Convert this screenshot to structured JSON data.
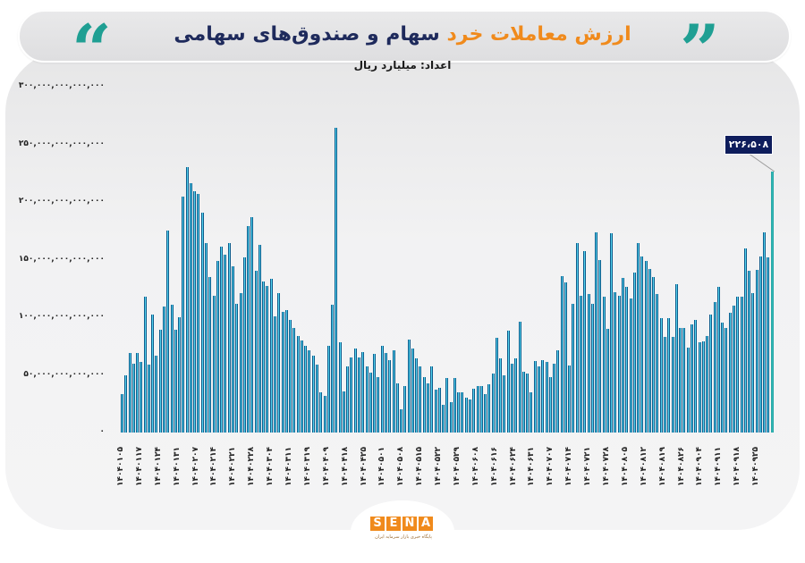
{
  "header": {
    "title_accent": "ارزش معاملات خرد",
    "title_main": "سهام و صندوق‌های سهامی",
    "subtitle": "اعداد: میلیارد ریال",
    "quote_left": "“",
    "quote_right": "”",
    "colors": {
      "accent": "#f08a1c",
      "title": "#1e2a5c",
      "quote": "#1f9f93"
    }
  },
  "callout": {
    "label": "۲۲۶،۵۰۸"
  },
  "footer": {
    "logo_letters": [
      "S",
      "E",
      "N",
      "A"
    ],
    "logo_tagline": "پایگاه خبری بازار سرمایه ایران",
    "logo_color": "#f08a1c"
  },
  "chart_data": {
    "type": "bar",
    "title": "ارزش معاملات خرد سهام و صندوق‌های سهامی",
    "subtitle": "اعداد: میلیارد ریال",
    "xlabel": "",
    "ylabel": "",
    "ylim": [
      0,
      300000000000000
    ],
    "y_unit_scale": "values in trillions of axis units (×1,000,000,000,000)",
    "y_ticks": [
      "۳۰۰,۰۰۰,۰۰۰,۰۰۰,۰۰۰",
      "۲۵۰,۰۰۰,۰۰۰,۰۰۰,۰۰۰",
      "۲۰۰,۰۰۰,۰۰۰,۰۰۰,۰۰۰",
      "۱۵۰,۰۰۰,۰۰۰,۰۰۰,۰۰۰",
      "۱۰۰,۰۰۰,۰۰۰,۰۰۰,۰۰۰",
      "۵۰,۰۰۰,۰۰۰,۰۰۰,۰۰۰",
      "۰"
    ],
    "y_tick_values": [
      300,
      250,
      200,
      150,
      100,
      50,
      0
    ],
    "x_tick_labels": [
      "۱۴۰۴۰۱۰۵",
      "۱۴۰۴۰۱۱۷",
      "۱۴۰۴۰۱۲۴",
      "۱۴۰۴۰۱۳۱",
      "۱۴۰۴۰۲۰۷",
      "۱۴۰۴۰۲۱۴",
      "۱۴۰۴۰۲۲۱",
      "۱۴۰۴۰۲۲۸",
      "۱۴۰۴۰۳۰۴",
      "۱۴۰۴۰۳۱۱",
      "۱۴۰۴۰۳۱۹",
      "۱۴۰۴۰۴۰۹",
      "۱۴۰۴۰۴۱۸",
      "۱۴۰۴۰۴۲۵",
      "۱۴۰۴۰۵۰۱",
      "۱۴۰۴۰۵۰۸",
      "۱۴۰۴۰۵۱۵",
      "۱۴۰۴۰۵۲۲",
      "۱۴۰۴۰۵۲۹",
      "۱۴۰۴۰۶۰۸",
      "۱۴۰۴۰۶۱۶",
      "۱۴۰۴۰۶۲۴",
      "۱۴۰۴۰۶۳۱",
      "۱۴۰۴۰۷۰۷",
      "۱۴۰۴۰۷۱۴",
      "۱۴۰۴۰۷۲۱",
      "۱۴۰۴۰۷۲۸",
      "۱۴۰۴۰۸۰۵",
      "۱۴۰۴۰۸۱۲",
      "۱۴۰۴۰۸۱۹",
      "۱۴۰۴۰۸۲۶",
      "۱۴۰۴۰۹۰۴",
      "۱۴۰۴۰۹۱۱",
      "۱۴۰۴۰۹۱۸",
      "۱۴۰۴۰۹۲۵"
    ],
    "values": [
      33,
      50,
      69,
      60,
      69,
      61,
      118,
      59,
      102,
      67,
      89,
      109,
      175,
      111,
      89,
      100,
      205,
      230,
      216,
      209,
      207,
      191,
      164,
      135,
      119,
      149,
      161,
      154,
      164,
      144,
      112,
      121,
      152,
      179,
      187,
      140,
      163,
      131,
      127,
      133,
      101,
      121,
      105,
      106,
      98,
      91,
      84,
      80,
      75,
      71,
      67,
      59,
      35,
      32,
      75,
      111,
      264,
      78,
      36,
      57,
      65,
      73,
      65,
      70,
      57,
      52,
      68,
      48,
      75,
      69,
      63,
      71,
      43,
      20,
      40,
      81,
      73,
      64,
      57,
      48,
      43,
      57,
      37,
      39,
      24,
      47,
      26,
      47,
      35,
      35,
      30,
      29,
      38,
      40,
      40,
      33,
      42,
      51,
      82,
      64,
      50,
      88,
      60,
      64,
      96,
      53,
      51,
      35,
      62,
      57,
      63,
      61,
      48,
      60,
      71,
      136,
      130,
      58,
      112,
      164,
      119,
      157,
      120,
      112,
      174,
      150,
      118,
      90,
      173,
      122,
      119,
      134,
      126,
      116,
      139,
      164,
      153,
      149,
      142,
      135,
      120,
      99,
      83,
      99,
      83,
      129,
      91,
      91,
      74,
      94,
      98,
      78,
      79,
      84,
      102,
      113,
      126,
      95,
      91,
      104,
      110,
      118,
      118,
      160,
      140,
      121,
      141,
      153,
      174,
      152,
      226.5
    ],
    "highlight": {
      "index": "last",
      "value": 226508,
      "label": "۲۲۶،۵۰۸",
      "color": "#2fb8b5"
    },
    "bar_color": "#55d3ee",
    "bar_border_color": "#0c5c8c",
    "grid": false,
    "legend": "none"
  }
}
